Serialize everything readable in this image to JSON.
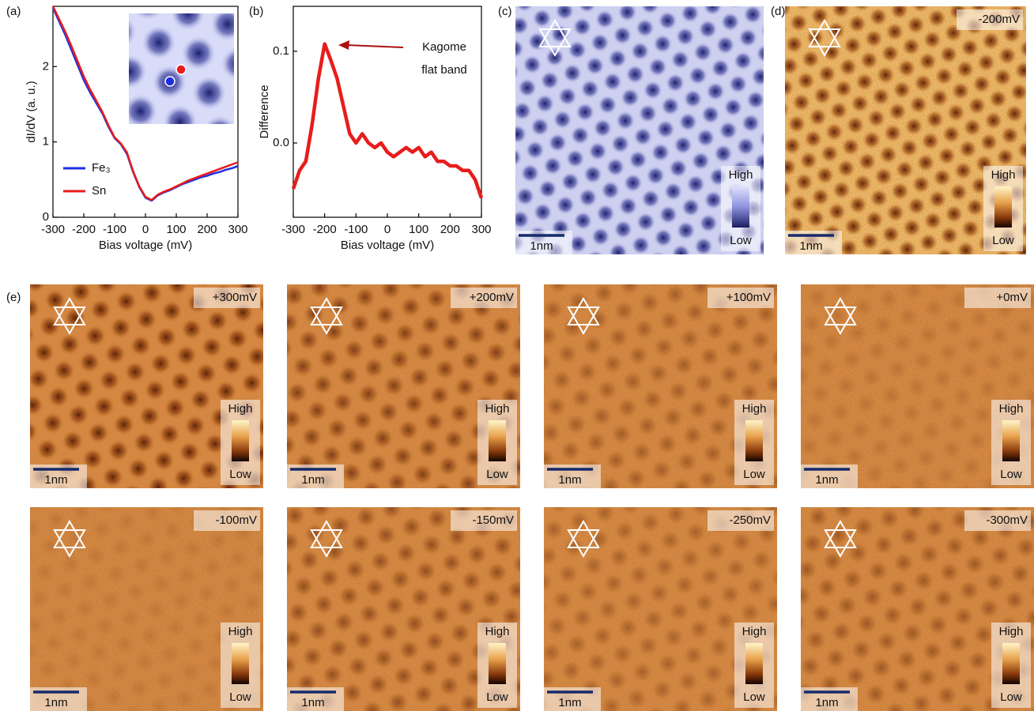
{
  "panel_labels": [
    "(a)",
    "(b)",
    "(c)",
    "(d)",
    "(e)"
  ],
  "chart_data": [
    {
      "type": "line",
      "xlabel": "Bias voltage (mV)",
      "ylabel": "dI/dV (a. u.)",
      "x": [
        -300,
        -280,
        -260,
        -240,
        -220,
        -200,
        -180,
        -160,
        -140,
        -120,
        -100,
        -80,
        -60,
        -40,
        -20,
        0,
        20,
        40,
        60,
        80,
        100,
        120,
        140,
        160,
        180,
        200,
        220,
        240,
        260,
        280,
        300
      ],
      "xlim": [
        -300,
        300
      ],
      "xticks": [
        -300,
        -200,
        -100,
        0,
        100,
        200,
        300
      ],
      "ylim": [
        0,
        2.8
      ],
      "yticks": [
        0,
        1,
        2
      ],
      "series": [
        {
          "name": "Fe₃",
          "color": "#1f2fe0",
          "values": [
            2.78,
            2.6,
            2.42,
            2.22,
            2.02,
            1.82,
            1.66,
            1.52,
            1.38,
            1.2,
            1.05,
            0.97,
            0.84,
            0.6,
            0.4,
            0.26,
            0.22,
            0.29,
            0.33,
            0.36,
            0.4,
            0.44,
            0.47,
            0.5,
            0.53,
            0.55,
            0.58,
            0.6,
            0.63,
            0.65,
            0.68
          ]
        },
        {
          "name": "Sn",
          "color": "#e81c1c",
          "values": [
            2.8,
            2.63,
            2.46,
            2.27,
            2.07,
            1.87,
            1.7,
            1.55,
            1.4,
            1.22,
            1.06,
            0.98,
            0.86,
            0.61,
            0.41,
            0.27,
            0.23,
            0.3,
            0.34,
            0.37,
            0.41,
            0.45,
            0.49,
            0.52,
            0.55,
            0.58,
            0.61,
            0.64,
            0.67,
            0.7,
            0.73
          ]
        }
      ]
    },
    {
      "type": "line",
      "xlabel": "Bias voltage (mV)",
      "ylabel": "Difference",
      "annotation": [
        "Kagome",
        "flat band"
      ],
      "x": [
        -300,
        -280,
        -260,
        -240,
        -220,
        -200,
        -180,
        -160,
        -140,
        -120,
        -100,
        -80,
        -60,
        -40,
        -20,
        0,
        20,
        40,
        60,
        80,
        100,
        120,
        140,
        160,
        180,
        200,
        220,
        240,
        260,
        280,
        300
      ],
      "xlim": [
        -300,
        300
      ],
      "xticks": [
        -300,
        -200,
        -100,
        0,
        100,
        200,
        300
      ],
      "ylim": [
        -0.081,
        0.149
      ],
      "yticks": [
        {
          "value": 0,
          "label": "0.0"
        },
        0.1
      ],
      "series": [
        {
          "name": "Difference",
          "color": "#e81c1c",
          "values": [
            -0.05,
            -0.03,
            -0.02,
            0.02,
            0.07,
            0.108,
            0.09,
            0.07,
            0.04,
            0.01,
            0.0,
            0.01,
            0.0,
            -0.005,
            0.0,
            -0.01,
            -0.015,
            -0.01,
            -0.005,
            -0.01,
            -0.005,
            -0.015,
            -0.01,
            -0.02,
            -0.02,
            -0.025,
            -0.025,
            -0.03,
            -0.03,
            -0.04,
            -0.06
          ]
        }
      ]
    }
  ],
  "maps": [
    {
      "high": "High",
      "low": "Low",
      "scale": "1nm"
    },
    {
      "voltage": "-200mV",
      "high": "High",
      "low": "Low",
      "scale": "1nm"
    },
    {
      "voltage": "+300mV",
      "high": "High",
      "low": "Low",
      "scale": "1nm"
    },
    {
      "voltage": "+200mV",
      "high": "High",
      "low": "Low",
      "scale": "1nm"
    },
    {
      "voltage": "+100mV",
      "high": "High",
      "low": "Low",
      "scale": "1nm"
    },
    {
      "voltage": "+0mV",
      "high": "High",
      "low": "Low",
      "scale": "1nm"
    },
    {
      "voltage": "-100mV",
      "high": "High",
      "low": "Low",
      "scale": "1nm"
    },
    {
      "voltage": "-150mV",
      "high": "High",
      "low": "Low",
      "scale": "1nm"
    },
    {
      "voltage": "-250mV",
      "high": "High",
      "low": "Low",
      "scale": "1nm"
    },
    {
      "voltage": "-300mV",
      "high": "High",
      "low": "Low",
      "scale": "1nm"
    }
  ]
}
